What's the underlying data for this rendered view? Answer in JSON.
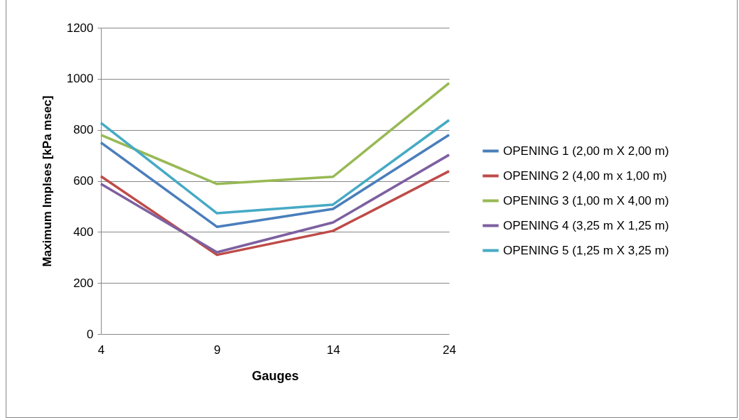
{
  "chart_data": {
    "type": "line",
    "xlabel": "Gauges",
    "ylabel": "Maximum Implses [kPa msec]",
    "categories": [
      "4",
      "9",
      "14",
      "24"
    ],
    "ylim": [
      0,
      1200
    ],
    "yticks": [
      0,
      200,
      400,
      600,
      800,
      1000,
      1200
    ],
    "grid": "y",
    "legend": "right",
    "marker": "none",
    "line_style": "solid",
    "series": [
      {
        "name": "OPENING 1 (2,00 m X 2,00 m)",
        "color": "#4a7ebb",
        "values": [
          750,
          420,
          490,
          780
        ]
      },
      {
        "name": "OPENING 2 (4,00 m x 1,00 m)",
        "color": "#be4b48",
        "values": [
          618,
          310,
          404,
          638
        ]
      },
      {
        "name": "OPENING 3 (1,00 m X 4,00 m)",
        "color": "#98b954",
        "values": [
          780,
          588,
          616,
          983
        ]
      },
      {
        "name": "OPENING 4 (3,25 m X 1,25 m)",
        "color": "#7d60a0",
        "values": [
          588,
          320,
          437,
          702
        ]
      },
      {
        "name": "OPENING 5 (1,25 m X 3,25 m)",
        "color": "#46aac5",
        "values": [
          827,
          473,
          507,
          838
        ]
      }
    ]
  }
}
